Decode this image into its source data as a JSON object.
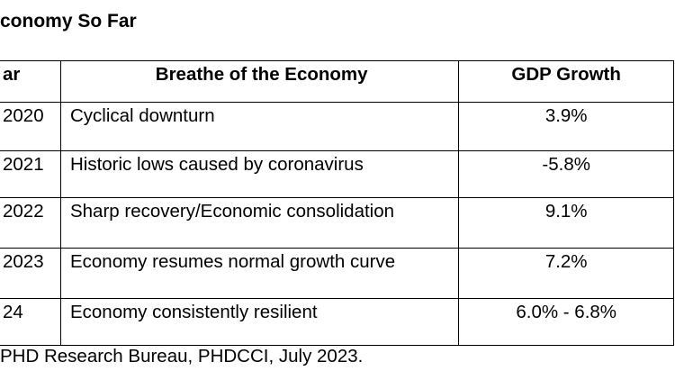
{
  "title": "conomy So Far",
  "table": {
    "header": [
      "ar",
      "Breathe of the Economy",
      "GDP Growth"
    ],
    "rows": [
      [
        "2020",
        "Cyclical downturn",
        "3.9%"
      ],
      [
        "2021",
        "Historic lows caused by coronavirus",
        "-5.8%"
      ],
      [
        "2022",
        "Sharp recovery/Economic consolidation",
        "9.1%"
      ],
      [
        "2023",
        "Economy resumes normal growth curve",
        "7.2%"
      ],
      [
        "24",
        "Economy consistently resilient",
        "6.0% - 6.8%"
      ]
    ]
  },
  "source": "PHD Research Bureau, PHDCCI, July 2023."
}
